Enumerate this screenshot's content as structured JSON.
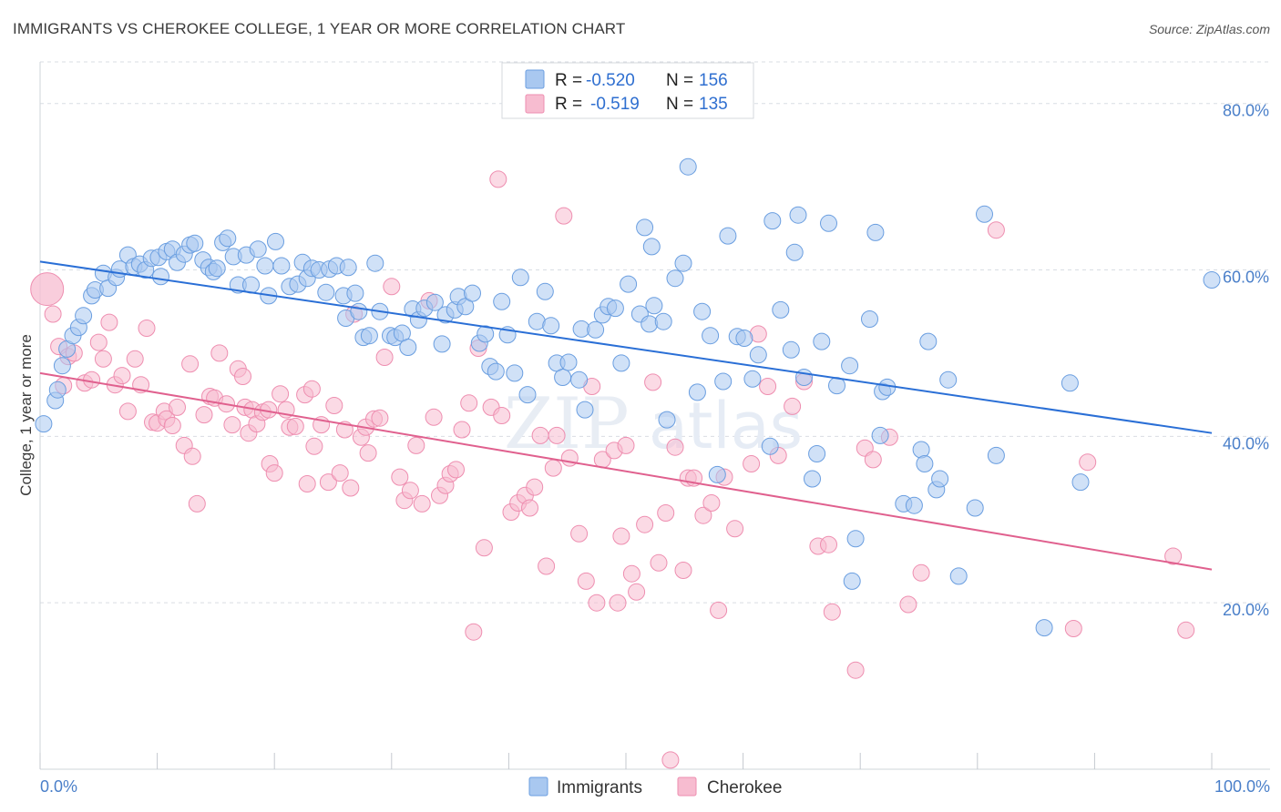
{
  "header": {
    "title": "IMMIGRANTS VS CHEROKEE COLLEGE, 1 YEAR OR MORE CORRELATION CHART",
    "source": "Source: ZipAtlas.com"
  },
  "watermark": {
    "zip": "ZIP",
    "atlas": "atlas"
  },
  "legend_top": {
    "r_label": "R =",
    "n_label": "N =",
    "rows": [
      {
        "r": "-0.520",
        "n": "156"
      },
      {
        "r": "-0.519",
        "n": "135"
      }
    ]
  },
  "legend_bottom": [
    "Immigrants",
    "Cherokee"
  ],
  "colors": {
    "immigrants_fill": "#a9c8f0",
    "immigrants_stroke": "#6a9ee0",
    "immigrants_line": "#2a6fd6",
    "cherokee_fill": "#f7bcd0",
    "cherokee_stroke": "#ee8eb0",
    "cherokee_line": "#e0608e",
    "grid": "#d9dde3",
    "tick_text": "#4a7fc9"
  },
  "chart_data": {
    "type": "scatter",
    "title": "IMMIGRANTS VS CHEROKEE COLLEGE, 1 YEAR OR MORE CORRELATION CHART",
    "xlabel": "",
    "ylabel": "College, 1 year or more",
    "xlim": [
      0,
      100
    ],
    "ylim": [
      0,
      85
    ],
    "x_tick_labels": [
      "0.0%",
      "100.0%"
    ],
    "y_ticks": [
      20,
      40,
      60,
      80
    ],
    "y_tick_labels": [
      "20.0%",
      "40.0%",
      "60.0%",
      "80.0%"
    ],
    "grid": true,
    "legend_position": "top-center",
    "series": [
      {
        "name": "Immigrants",
        "r": -0.52,
        "n": 156,
        "trend": {
          "x": [
            0,
            100
          ],
          "y": [
            61.0,
            40.4
          ]
        },
        "points": [
          [
            0.3,
            41.5
          ],
          [
            1.3,
            44.3
          ],
          [
            1.5,
            45.6
          ],
          [
            1.9,
            48.5
          ],
          [
            2.3,
            50.5
          ],
          [
            2.8,
            52.1
          ],
          [
            3.3,
            53.1
          ],
          [
            3.7,
            54.5
          ],
          [
            4.4,
            56.9
          ],
          [
            4.7,
            57.6
          ],
          [
            5.4,
            59.6
          ],
          [
            5.8,
            57.8
          ],
          [
            6.5,
            59.1
          ],
          [
            6.8,
            60.1
          ],
          [
            7.5,
            61.8
          ],
          [
            8.0,
            60.4
          ],
          [
            8.5,
            60.7
          ],
          [
            9.0,
            60.0
          ],
          [
            9.5,
            61.4
          ],
          [
            10.1,
            61.5
          ],
          [
            10.3,
            59.2
          ],
          [
            10.8,
            62.2
          ],
          [
            11.3,
            62.5
          ],
          [
            11.7,
            60.9
          ],
          [
            12.3,
            61.9
          ],
          [
            12.8,
            63.0
          ],
          [
            13.2,
            63.2
          ],
          [
            13.9,
            61.2
          ],
          [
            14.4,
            60.3
          ],
          [
            14.8,
            59.8
          ],
          [
            15.1,
            60.2
          ],
          [
            15.6,
            63.3
          ],
          [
            16.0,
            63.8
          ],
          [
            16.5,
            61.6
          ],
          [
            16.9,
            58.2
          ],
          [
            17.6,
            61.8
          ],
          [
            18.0,
            58.2
          ],
          [
            18.6,
            62.5
          ],
          [
            19.2,
            60.5
          ],
          [
            19.5,
            56.9
          ],
          [
            20.1,
            63.4
          ],
          [
            20.6,
            60.5
          ],
          [
            21.3,
            58.0
          ],
          [
            22.0,
            58.3
          ],
          [
            22.4,
            60.9
          ],
          [
            22.8,
            59.0
          ],
          [
            23.2,
            60.2
          ],
          [
            23.8,
            60.0
          ],
          [
            24.4,
            57.3
          ],
          [
            24.7,
            60.1
          ],
          [
            25.3,
            60.5
          ],
          [
            25.9,
            56.9
          ],
          [
            26.1,
            54.2
          ],
          [
            26.3,
            60.3
          ],
          [
            26.9,
            57.2
          ],
          [
            27.2,
            55.0
          ],
          [
            27.6,
            51.9
          ],
          [
            28.1,
            52.1
          ],
          [
            28.6,
            60.8
          ],
          [
            29.0,
            55.0
          ],
          [
            29.9,
            52.1
          ],
          [
            30.3,
            51.9
          ],
          [
            30.9,
            52.4
          ],
          [
            31.4,
            50.7
          ],
          [
            31.8,
            55.3
          ],
          [
            32.3,
            54.0
          ],
          [
            32.8,
            55.4
          ],
          [
            33.7,
            56.1
          ],
          [
            34.3,
            51.1
          ],
          [
            34.6,
            54.6
          ],
          [
            35.4,
            55.2
          ],
          [
            35.7,
            56.8
          ],
          [
            36.3,
            55.6
          ],
          [
            36.9,
            57.2
          ],
          [
            37.5,
            51.2
          ],
          [
            38.0,
            52.3
          ],
          [
            38.4,
            48.4
          ],
          [
            38.9,
            47.8
          ],
          [
            39.4,
            56.2
          ],
          [
            39.9,
            52.2
          ],
          [
            40.5,
            47.6
          ],
          [
            41.0,
            59.1
          ],
          [
            41.6,
            45.0
          ],
          [
            42.4,
            53.8
          ],
          [
            43.1,
            57.4
          ],
          [
            43.6,
            53.3
          ],
          [
            44.1,
            48.8
          ],
          [
            44.6,
            47.1
          ],
          [
            45.1,
            48.9
          ],
          [
            46.0,
            46.8
          ],
          [
            46.2,
            52.9
          ],
          [
            46.5,
            43.2
          ],
          [
            47.4,
            52.8
          ],
          [
            48.0,
            54.6
          ],
          [
            48.5,
            55.6
          ],
          [
            49.1,
            55.4
          ],
          [
            49.6,
            48.8
          ],
          [
            50.2,
            58.3
          ],
          [
            51.2,
            54.7
          ],
          [
            51.6,
            65.1
          ],
          [
            52.0,
            53.5
          ],
          [
            52.2,
            62.8
          ],
          [
            52.4,
            55.7
          ],
          [
            53.2,
            53.8
          ],
          [
            53.5,
            42.0
          ],
          [
            54.2,
            59.0
          ],
          [
            54.9,
            60.8
          ],
          [
            55.3,
            72.4
          ],
          [
            56.1,
            45.3
          ],
          [
            56.5,
            55.0
          ],
          [
            57.2,
            52.1
          ],
          [
            57.8,
            35.4
          ],
          [
            58.3,
            46.6
          ],
          [
            58.7,
            64.1
          ],
          [
            59.5,
            52.0
          ],
          [
            60.1,
            51.8
          ],
          [
            60.8,
            46.9
          ],
          [
            61.3,
            49.8
          ],
          [
            62.3,
            38.8
          ],
          [
            62.5,
            65.9
          ],
          [
            63.2,
            55.2
          ],
          [
            64.1,
            50.4
          ],
          [
            64.4,
            62.1
          ],
          [
            64.7,
            66.6
          ],
          [
            65.2,
            47.1
          ],
          [
            65.9,
            34.9
          ],
          [
            66.3,
            37.9
          ],
          [
            66.7,
            51.4
          ],
          [
            67.3,
            65.6
          ],
          [
            68.0,
            46.1
          ],
          [
            69.1,
            48.5
          ],
          [
            69.3,
            22.6
          ],
          [
            69.6,
            27.7
          ],
          [
            70.8,
            54.1
          ],
          [
            71.3,
            64.5
          ],
          [
            71.7,
            40.1
          ],
          [
            71.9,
            45.4
          ],
          [
            72.3,
            45.9
          ],
          [
            73.7,
            31.9
          ],
          [
            74.6,
            31.7
          ],
          [
            75.2,
            38.4
          ],
          [
            75.5,
            36.7
          ],
          [
            75.8,
            51.4
          ],
          [
            76.5,
            33.6
          ],
          [
            76.8,
            34.9
          ],
          [
            77.5,
            46.8
          ],
          [
            78.4,
            23.2
          ],
          [
            79.8,
            31.4
          ],
          [
            80.6,
            66.7
          ],
          [
            81.6,
            37.7
          ],
          [
            85.7,
            17.0
          ],
          [
            87.9,
            46.4
          ],
          [
            88.8,
            34.5
          ],
          [
            100.0,
            58.8
          ]
        ]
      },
      {
        "name": "Cherokee",
        "r": -0.519,
        "n": 135,
        "trend": {
          "x": [
            0,
            100
          ],
          "y": [
            47.6,
            24.0
          ]
        },
        "points": [
          [
            0.6,
            57.7
          ],
          [
            1.1,
            54.7
          ],
          [
            1.6,
            50.8
          ],
          [
            2.0,
            46.1
          ],
          [
            2.4,
            49.6
          ],
          [
            2.9,
            50.0
          ],
          [
            3.8,
            46.4
          ],
          [
            4.4,
            46.8
          ],
          [
            5.0,
            51.3
          ],
          [
            5.4,
            49.3
          ],
          [
            5.9,
            53.7
          ],
          [
            6.4,
            46.2
          ],
          [
            7.0,
            47.3
          ],
          [
            7.5,
            43.0
          ],
          [
            8.1,
            49.3
          ],
          [
            8.6,
            46.2
          ],
          [
            9.1,
            53.0
          ],
          [
            9.6,
            41.7
          ],
          [
            10.0,
            41.6
          ],
          [
            10.6,
            43.0
          ],
          [
            10.8,
            42.1
          ],
          [
            11.3,
            41.3
          ],
          [
            11.7,
            43.5
          ],
          [
            12.3,
            38.9
          ],
          [
            12.8,
            48.7
          ],
          [
            13.0,
            37.6
          ],
          [
            13.4,
            31.9
          ],
          [
            14.0,
            42.6
          ],
          [
            14.5,
            44.8
          ],
          [
            14.9,
            44.6
          ],
          [
            15.3,
            50.0
          ],
          [
            15.9,
            43.9
          ],
          [
            16.4,
            41.4
          ],
          [
            16.9,
            48.1
          ],
          [
            17.3,
            47.2
          ],
          [
            17.5,
            43.5
          ],
          [
            17.8,
            40.4
          ],
          [
            18.1,
            43.2
          ],
          [
            18.5,
            41.5
          ],
          [
            19.0,
            42.9
          ],
          [
            19.5,
            43.2
          ],
          [
            19.6,
            36.7
          ],
          [
            20.0,
            35.6
          ],
          [
            20.5,
            45.1
          ],
          [
            21.0,
            43.2
          ],
          [
            21.3,
            41.1
          ],
          [
            21.8,
            41.2
          ],
          [
            22.6,
            45.0
          ],
          [
            22.8,
            34.3
          ],
          [
            23.2,
            45.7
          ],
          [
            23.4,
            38.8
          ],
          [
            24.0,
            41.4
          ],
          [
            24.6,
            34.5
          ],
          [
            25.1,
            43.7
          ],
          [
            25.6,
            35.6
          ],
          [
            26.0,
            40.8
          ],
          [
            26.5,
            33.8
          ],
          [
            26.8,
            54.7
          ],
          [
            27.4,
            39.9
          ],
          [
            27.8,
            41.1
          ],
          [
            28.0,
            38.0
          ],
          [
            28.5,
            42.1
          ],
          [
            29.0,
            42.2
          ],
          [
            29.4,
            49.5
          ],
          [
            30.0,
            58.0
          ],
          [
            30.7,
            35.1
          ],
          [
            31.1,
            32.3
          ],
          [
            31.6,
            33.5
          ],
          [
            32.1,
            38.9
          ],
          [
            32.6,
            31.9
          ],
          [
            33.2,
            56.3
          ],
          [
            33.6,
            42.3
          ],
          [
            34.1,
            32.9
          ],
          [
            34.6,
            34.1
          ],
          [
            35.0,
            35.5
          ],
          [
            35.5,
            36.0
          ],
          [
            36.0,
            40.8
          ],
          [
            36.6,
            44.0
          ],
          [
            37.0,
            16.5
          ],
          [
            37.4,
            50.6
          ],
          [
            37.9,
            26.6
          ],
          [
            38.5,
            43.5
          ],
          [
            39.1,
            70.9
          ],
          [
            39.4,
            42.5
          ],
          [
            40.2,
            30.9
          ],
          [
            40.8,
            32.0
          ],
          [
            41.4,
            32.9
          ],
          [
            41.8,
            31.4
          ],
          [
            42.2,
            33.9
          ],
          [
            42.7,
            40.1
          ],
          [
            43.2,
            24.4
          ],
          [
            43.8,
            36.2
          ],
          [
            44.1,
            40.1
          ],
          [
            44.7,
            66.5
          ],
          [
            45.2,
            37.4
          ],
          [
            46.0,
            28.3
          ],
          [
            46.6,
            22.6
          ],
          [
            47.1,
            46.0
          ],
          [
            47.5,
            20.0
          ],
          [
            48.0,
            37.2
          ],
          [
            49.0,
            38.3
          ],
          [
            49.3,
            20.0
          ],
          [
            49.6,
            28.0
          ],
          [
            50.0,
            38.9
          ],
          [
            50.5,
            23.5
          ],
          [
            50.9,
            21.3
          ],
          [
            51.6,
            29.4
          ],
          [
            52.3,
            46.5
          ],
          [
            52.8,
            24.8
          ],
          [
            53.4,
            30.8
          ],
          [
            53.8,
            1.1
          ],
          [
            54.2,
            38.7
          ],
          [
            54.9,
            23.9
          ],
          [
            55.3,
            35.0
          ],
          [
            55.8,
            35.0
          ],
          [
            56.6,
            30.5
          ],
          [
            57.3,
            32.0
          ],
          [
            57.9,
            19.1
          ],
          [
            58.4,
            35.1
          ],
          [
            59.3,
            28.9
          ],
          [
            60.7,
            36.7
          ],
          [
            61.3,
            52.3
          ],
          [
            62.1,
            46.0
          ],
          [
            63.0,
            37.7
          ],
          [
            64.2,
            43.6
          ],
          [
            65.2,
            46.6
          ],
          [
            66.4,
            26.8
          ],
          [
            67.3,
            27.0
          ],
          [
            67.6,
            18.9
          ],
          [
            69.6,
            11.9
          ],
          [
            70.4,
            38.6
          ],
          [
            71.1,
            37.2
          ],
          [
            72.5,
            39.9
          ],
          [
            74.1,
            19.8
          ],
          [
            75.2,
            23.6
          ],
          [
            81.6,
            64.8
          ],
          [
            88.2,
            16.9
          ],
          [
            89.4,
            36.9
          ],
          [
            96.7,
            25.6
          ],
          [
            97.8,
            16.7
          ]
        ]
      }
    ]
  }
}
